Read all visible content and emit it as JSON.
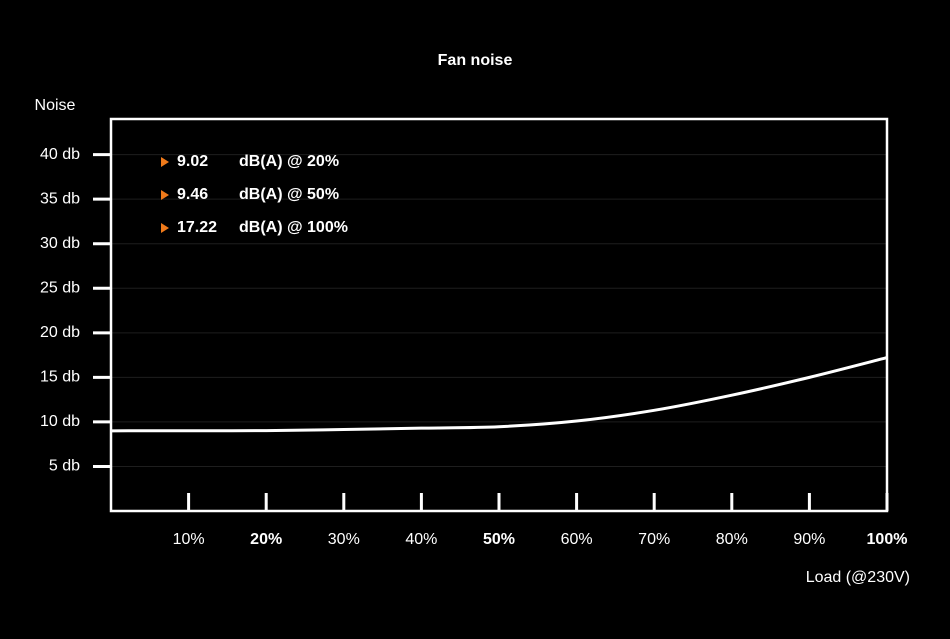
{
  "chart_data": {
    "type": "line",
    "title": "Fan noise",
    "y_label": "Noise",
    "x_label": "Load (@230V)",
    "x": [
      0,
      10,
      20,
      30,
      40,
      50,
      60,
      70,
      80,
      90,
      100
    ],
    "series": [
      {
        "name": "Fan noise",
        "color": "#ffffff",
        "values": [
          9.0,
          9.01,
          9.02,
          9.15,
          9.3,
          9.46,
          10.1,
          11.3,
          13.0,
          15.0,
          17.22
        ]
      }
    ],
    "xlim": [
      0,
      100
    ],
    "ylim": [
      0,
      44
    ],
    "xticks": [
      {
        "value": 10,
        "label": "10%"
      },
      {
        "value": 20,
        "label": "20%",
        "bold": true
      },
      {
        "value": 30,
        "label": "30%"
      },
      {
        "value": 40,
        "label": "40%"
      },
      {
        "value": 50,
        "label": "50%",
        "bold": true
      },
      {
        "value": 60,
        "label": "60%"
      },
      {
        "value": 70,
        "label": "70%"
      },
      {
        "value": 80,
        "label": "80%"
      },
      {
        "value": 90,
        "label": "90%"
      },
      {
        "value": 100,
        "label": "100%",
        "bold": true
      }
    ],
    "yticks": [
      {
        "value": 5,
        "label": "5 db"
      },
      {
        "value": 10,
        "label": "10 db"
      },
      {
        "value": 15,
        "label": "15 db"
      },
      {
        "value": 20,
        "label": "20 db"
      },
      {
        "value": 25,
        "label": "25 db"
      },
      {
        "value": 30,
        "label": "30 db"
      },
      {
        "value": 35,
        "label": "35 db"
      },
      {
        "value": 40,
        "label": "40 db"
      }
    ],
    "grid": true,
    "marker_color": "#f07a1a",
    "annotations": [
      {
        "value": "9.02",
        "text": "dB(A) @ 20%"
      },
      {
        "value": "9.46",
        "text": "dB(A) @ 50%"
      },
      {
        "value": "17.22",
        "text": "dB(A) @ 100%"
      }
    ]
  }
}
